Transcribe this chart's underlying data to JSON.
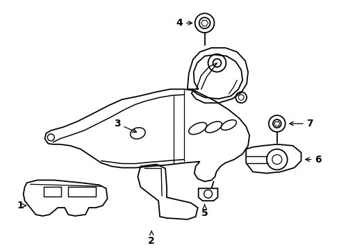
{
  "background_color": "#ffffff",
  "line_color": "#000000",
  "line_width": 1.3,
  "fig_width": 4.89,
  "fig_height": 3.6,
  "label_fontsize": 10
}
